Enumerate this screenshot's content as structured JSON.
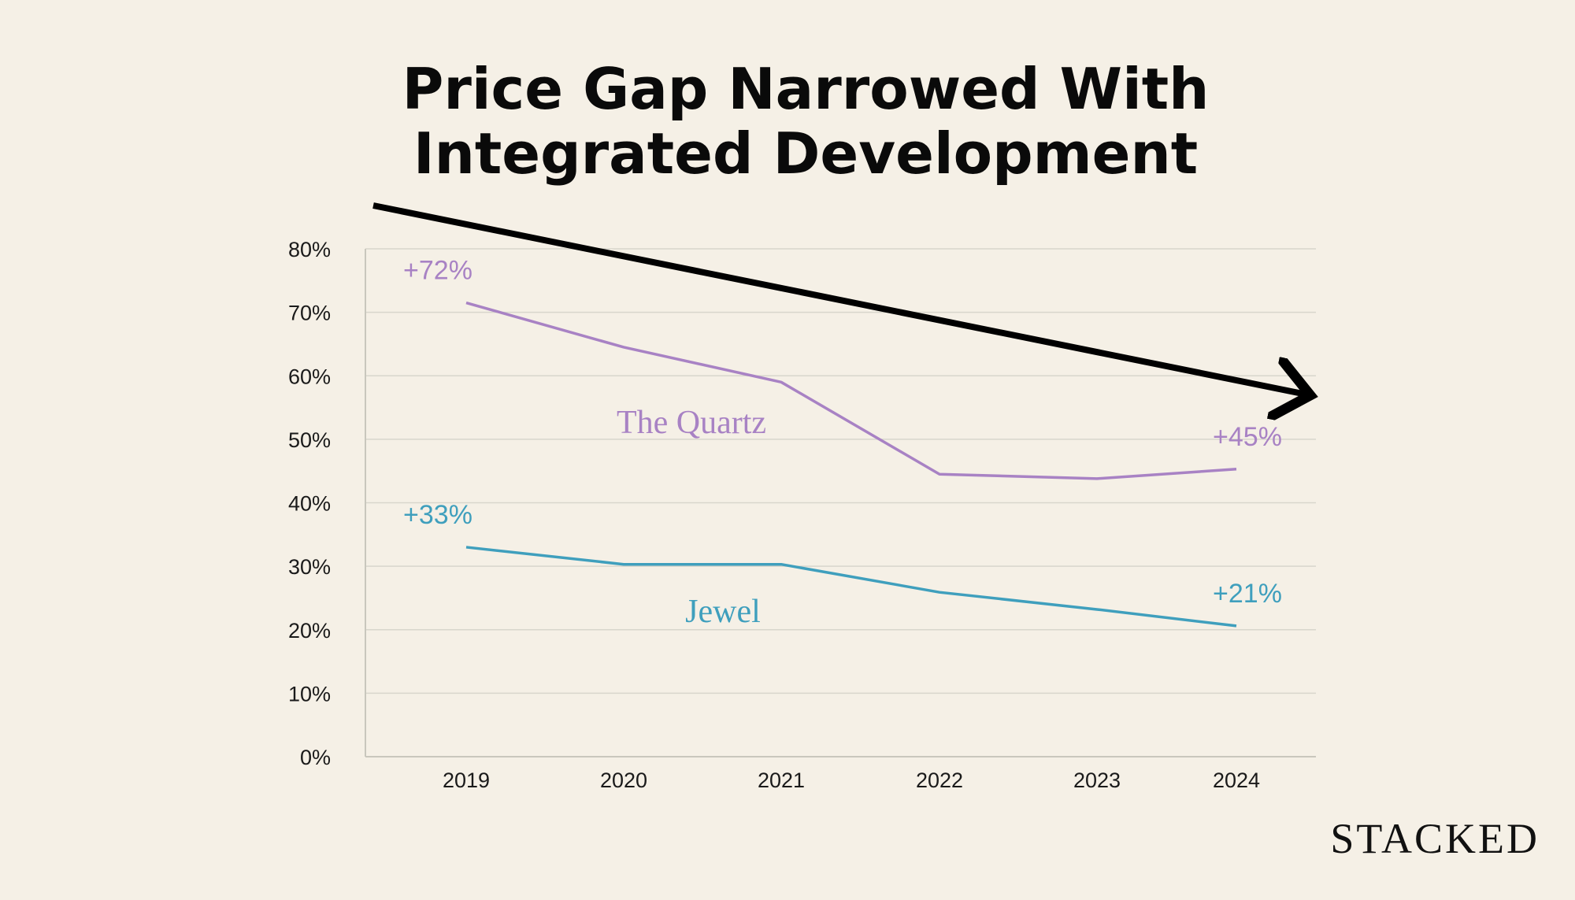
{
  "title_lines": [
    "Price Gap Narrowed With",
    "Integrated Development"
  ],
  "brand": "STACKED",
  "colors": {
    "background": "#f5f0e6",
    "quartz": "#a882c4",
    "jewel": "#3f9fbd",
    "trend_arrow": "#000000",
    "grid": "#d8d6cc"
  },
  "chart_data": {
    "type": "line",
    "title": "Price Gap Narrowed With Integrated Development",
    "categories": [
      "2019",
      "2020",
      "2021",
      "2022",
      "2023",
      "2024"
    ],
    "ylim": [
      0,
      80
    ],
    "yticks": [
      0,
      10,
      20,
      30,
      40,
      50,
      60,
      70,
      80
    ],
    "ytick_labels": [
      "0%",
      "10%",
      "20%",
      "30%",
      "40%",
      "50%",
      "60%",
      "70%",
      "80%"
    ],
    "grid": true,
    "series": [
      {
        "key": "quartz",
        "name": "The Quartz",
        "values": [
          71.5,
          64.5,
          59,
          44.5,
          43.8,
          45.3
        ],
        "start_label": "+72%",
        "end_label": "+45%"
      },
      {
        "key": "jewel",
        "name": "Jewel",
        "values": [
          33,
          30.3,
          30.3,
          25.9,
          23.2,
          20.6
        ],
        "start_label": "+33%",
        "end_label": "+21%"
      }
    ],
    "trend_arrow": {
      "direction": "decreasing"
    }
  }
}
